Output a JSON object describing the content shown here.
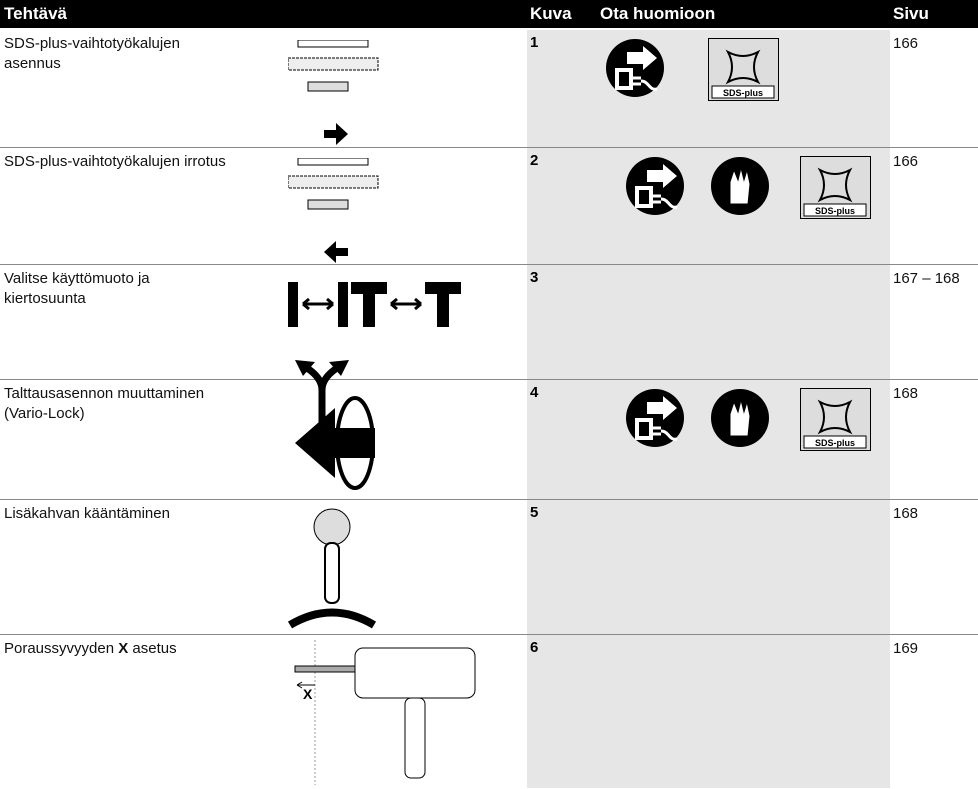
{
  "header": {
    "task": "Tehtävä",
    "figure": "Kuva",
    "note": "Ota huomioon",
    "page": "Sivu"
  },
  "rows": [
    {
      "task_lines": [
        "SDS-plus-vaihtotyökalujen",
        "asennus"
      ],
      "figure": "1",
      "note_label": "SDS-plus",
      "page": "166"
    },
    {
      "task_lines": [
        "SDS-plus-vaihtotyökalujen irrotus"
      ],
      "figure": "2",
      "note_label": "SDS-plus",
      "page": "166"
    },
    {
      "task_lines": [
        "Valitse käyttömuoto ja",
        "kiertosuunta"
      ],
      "figure": "3",
      "page": "167 – 168"
    },
    {
      "task_lines": [
        "Talttausasennon muuttaminen",
        "(Vario-Lock)"
      ],
      "figure": "4",
      "note_label": "SDS-plus",
      "page": "168"
    },
    {
      "task_lines": [
        "Lisäkahvan kääntäminen"
      ],
      "figure": "5",
      "page": "168"
    },
    {
      "task_parts": [
        "Poraussyvyyden ",
        "X",
        " asetus"
      ],
      "figure": "6",
      "figure_label": "X",
      "page": "169"
    }
  ]
}
